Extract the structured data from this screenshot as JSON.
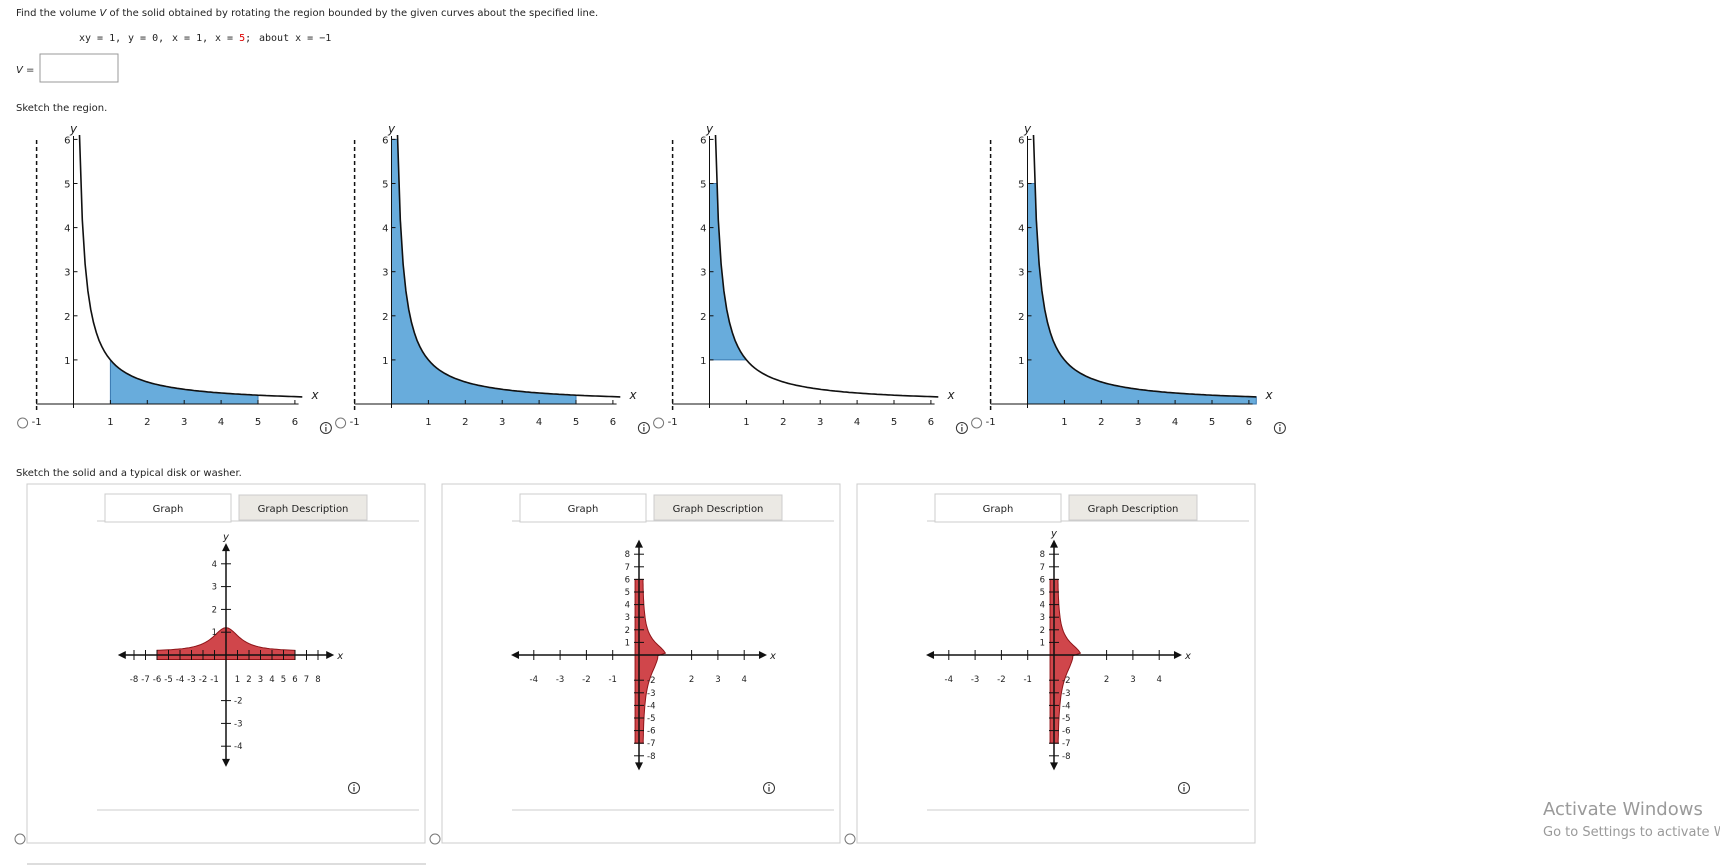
{
  "question": {
    "before": "Find the volume ",
    "variable": "V",
    "after": " of the solid obtained by rotating the region bounded by the given curves about the specified line."
  },
  "equations": [
    "xy = 1,",
    "y = 0,",
    "x = 1,",
    "x = ",
    "5",
    ";",
    "about x = −1"
  ],
  "answer_label": "V =",
  "region_prompt": "Sketch the region.",
  "region_plots": {
    "x_label": "x",
    "y_label": "y",
    "xticks": [
      -1,
      1,
      2,
      3,
      4,
      5,
      6
    ],
    "yticks": [
      1,
      2,
      3,
      4,
      5,
      6
    ]
  },
  "solid_prompt": "Sketch the solid and a typical disk or washer.",
  "solid_panels": [
    {
      "tabs": [
        "Graph",
        "Graph Description"
      ],
      "x_label": "x",
      "y_label": "y",
      "xticks": [
        -8,
        -7,
        -6,
        -5,
        -4,
        -3,
        -2,
        -1,
        1,
        2,
        3,
        4,
        5,
        6,
        7,
        8
      ],
      "yticks": [
        -4,
        -3,
        -2,
        1,
        2,
        3,
        4
      ]
    },
    {
      "tabs": [
        "Graph",
        "Graph Description"
      ],
      "x_label": "x",
      "xticks": [
        -4,
        -3,
        -2,
        -1,
        2,
        3,
        4
      ],
      "yticks": [
        -8,
        -7,
        -6,
        -5,
        -4,
        -3,
        -2,
        1,
        2,
        3,
        4,
        5,
        6,
        7,
        8
      ]
    },
    {
      "tabs": [
        "Graph",
        "Graph Description"
      ],
      "x_label": "x",
      "y_label": "y",
      "xticks": [
        -4,
        -3,
        -2,
        -1,
        2,
        3,
        4
      ],
      "yticks": [
        -8,
        -7,
        -6,
        -5,
        -4,
        -3,
        -2,
        1,
        2,
        3,
        4,
        5,
        6,
        7,
        8
      ]
    }
  ],
  "watermark": {
    "title": "Activate Windows",
    "subtitle": "Go to Settings to activate Windows."
  }
}
